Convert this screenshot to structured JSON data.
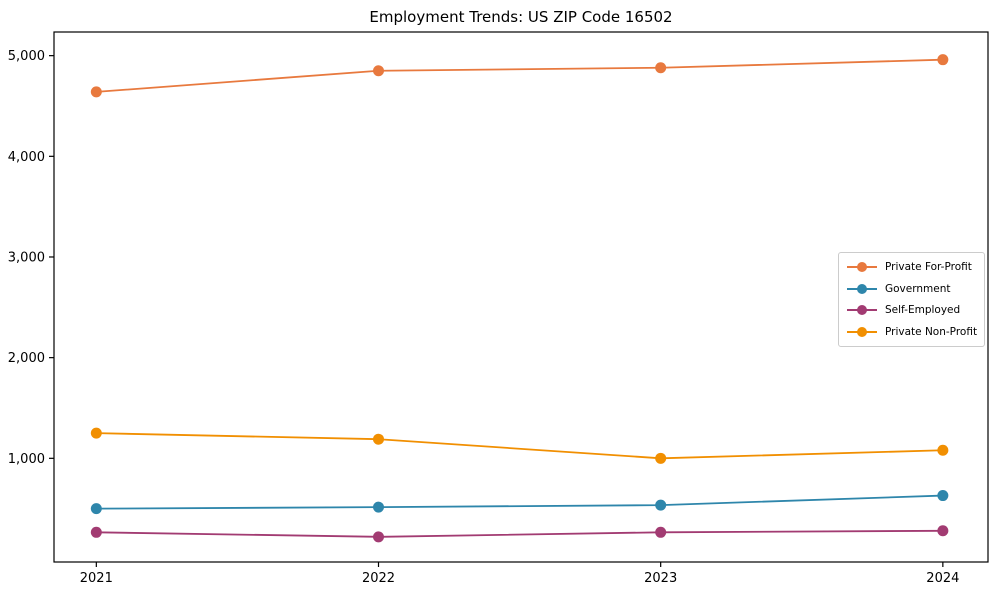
{
  "chart_data": {
    "type": "line",
    "title": "Employment Trends: US ZIP Code 16502",
    "xlabel": "",
    "ylabel": "",
    "x": [
      2021,
      2022,
      2023,
      2024
    ],
    "xtick_labels": [
      "2021",
      "2022",
      "2023",
      "2024"
    ],
    "yticks": [
      {
        "value": 1000,
        "label": "1,000"
      },
      {
        "value": 2000,
        "label": "2,000"
      },
      {
        "value": 3000,
        "label": "3,000"
      },
      {
        "value": 4000,
        "label": "4,000"
      },
      {
        "value": 5000,
        "label": "5,000"
      }
    ],
    "xlim": [
      2020.85,
      2024.16
    ],
    "ylim": [
      -30,
      5235
    ],
    "grid": false,
    "legend_position": "center-right",
    "axis_color": "#000000",
    "series": [
      {
        "name": "Private For-Profit",
        "color": "#E8793E",
        "marker": "circle",
        "values": [
          4640,
          4850,
          4880,
          4960
        ]
      },
      {
        "name": "Government",
        "color": "#2E86AB",
        "marker": "circle",
        "values": [
          500,
          515,
          535,
          630
        ]
      },
      {
        "name": "Self-Employed",
        "color": "#A23B72",
        "marker": "circle",
        "values": [
          265,
          220,
          265,
          280
        ]
      },
      {
        "name": "Private Non-Profit",
        "color": "#F18F01",
        "marker": "circle",
        "values": [
          1250,
          1190,
          1000,
          1080
        ]
      }
    ]
  }
}
